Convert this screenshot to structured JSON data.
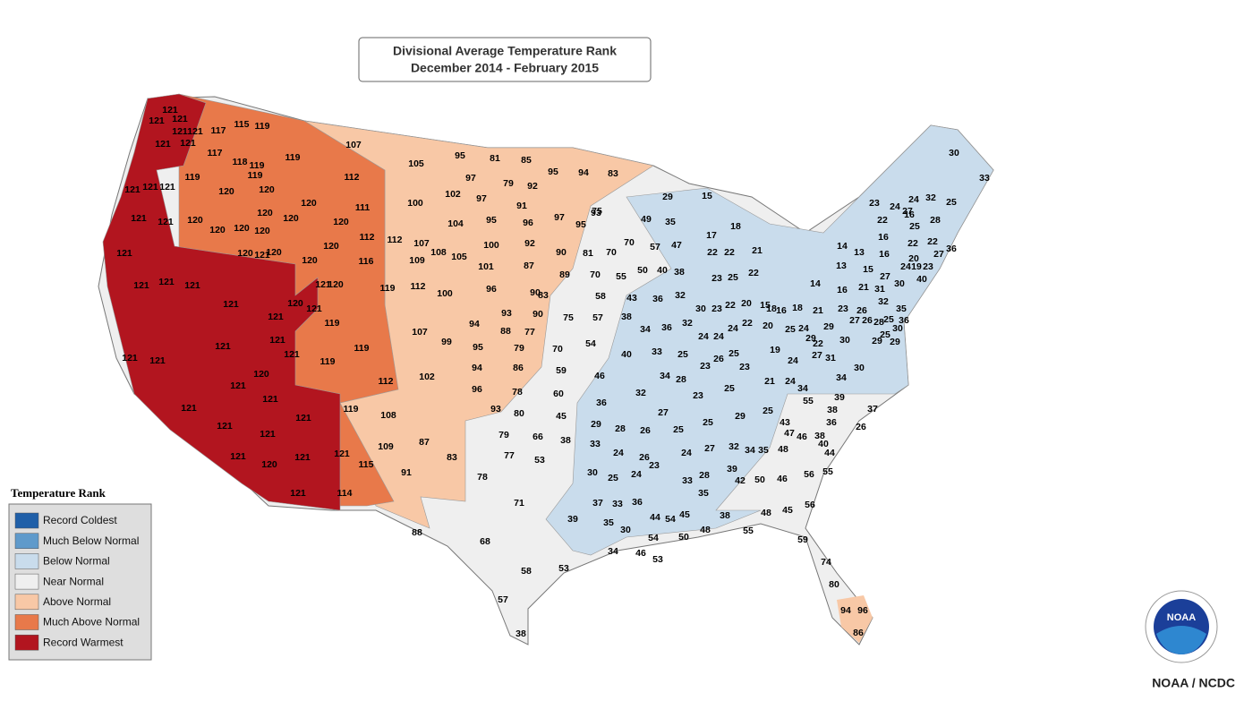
{
  "map": {
    "title_line1": "Divisional Average Temperature Rank",
    "title_line2": "December 2014 - February 2015",
    "legend": {
      "title": "Temperature Rank",
      "items": [
        {
          "label": "Record Coldest",
          "color": "#1f5fa8"
        },
        {
          "label": "Much Below Normal",
          "color": "#5f9acb"
        },
        {
          "label": "Below Normal",
          "color": "#c9dcec"
        },
        {
          "label": "Near Normal",
          "color": "#efefef"
        },
        {
          "label": "Above Normal",
          "color": "#f8c8a6"
        },
        {
          "label": "Much Above Normal",
          "color": "#e8794a"
        },
        {
          "label": "Record Warmest",
          "color": "#b2151f"
        }
      ]
    },
    "source": "NOAA / NCDC",
    "logo_text": "NOAA",
    "divisions": [
      121,
      121,
      121,
      121,
      121,
      121,
      121,
      117,
      115,
      119,
      117,
      118,
      119,
      119,
      119,
      121,
      121,
      121,
      119,
      120,
      120,
      120,
      112,
      121,
      121,
      120,
      120,
      120,
      120,
      120,
      120,
      111,
      112,
      112,
      107,
      109,
      108,
      105,
      120,
      120,
      116,
      120,
      120,
      120,
      121,
      121,
      121,
      121,
      121,
      120,
      119,
      112,
      121,
      121,
      120,
      121,
      121,
      119,
      119,
      121,
      121,
      121,
      121,
      121,
      120,
      119,
      112,
      121,
      121,
      121,
      121,
      121,
      121,
      120,
      121,
      121,
      121,
      121,
      115,
      114,
      119,
      107,
      105,
      95,
      81,
      85,
      95,
      94,
      83,
      97,
      79,
      92,
      102,
      97,
      91,
      100,
      104,
      95,
      96,
      97,
      95,
      93,
      100,
      92,
      90,
      101,
      87,
      89,
      100,
      96,
      90,
      83,
      93,
      90,
      94,
      88,
      77,
      107,
      99,
      95,
      79,
      70,
      94,
      86,
      102,
      96,
      78,
      93,
      108,
      109,
      87,
      91,
      83,
      88,
      81,
      70,
      75,
      49,
      70,
      57,
      47,
      50,
      40,
      38,
      70,
      55,
      43,
      58,
      75,
      57,
      54,
      46,
      59,
      60,
      80,
      45,
      79,
      66,
      77,
      53,
      78,
      71,
      68,
      58,
      53,
      57,
      38,
      29,
      15,
      35,
      17,
      18,
      21,
      22,
      22,
      22,
      25,
      23,
      36,
      32,
      38,
      30,
      23,
      22,
      20,
      15,
      16,
      18,
      21,
      23,
      34,
      36,
      32,
      24,
      24,
      24,
      22,
      20,
      19,
      25,
      24,
      29,
      40,
      33,
      25,
      23,
      26,
      25,
      23,
      34,
      28,
      32,
      23,
      25,
      21,
      24,
      22,
      27,
      31,
      30,
      34,
      24,
      34,
      36,
      27,
      25,
      25,
      29,
      25,
      29,
      28,
      26,
      38,
      33,
      24,
      26,
      23,
      24,
      27,
      32,
      34,
      35,
      30,
      25,
      24,
      33,
      28,
      35,
      39,
      37,
      33,
      36,
      39,
      35,
      30,
      38,
      34,
      30,
      33,
      23,
      24,
      27,
      24,
      32,
      25,
      22,
      16,
      25,
      28,
      14,
      13,
      16,
      22,
      22,
      20,
      27,
      13,
      16,
      14,
      16,
      21,
      31,
      30,
      15,
      27,
      32,
      24,
      19,
      23,
      36,
      40,
      18,
      26,
      35,
      29,
      27,
      26,
      28,
      25,
      36,
      30,
      29,
      25,
      30,
      29,
      39,
      38,
      36,
      37,
      26,
      55,
      43,
      47,
      46,
      38,
      40,
      44,
      48,
      56,
      55,
      42,
      50,
      46,
      44,
      54,
      45,
      54,
      50,
      48,
      55,
      48,
      45,
      56,
      59,
      46,
      53,
      74,
      80,
      94,
      96,
      86
    ]
  }
}
